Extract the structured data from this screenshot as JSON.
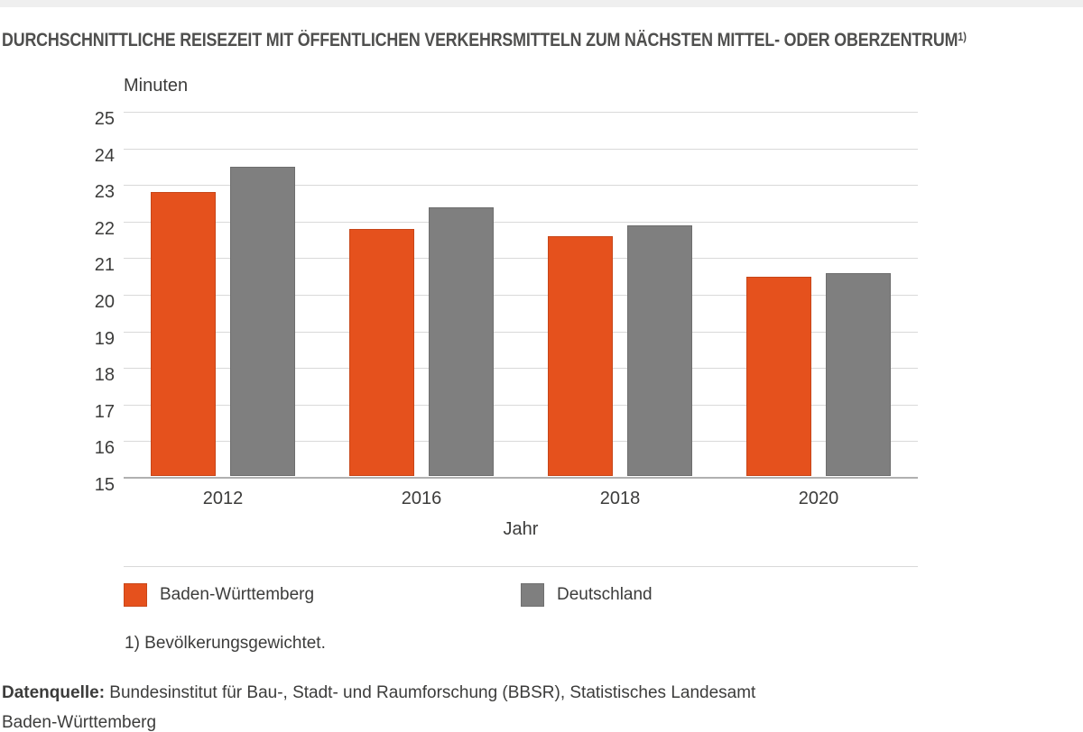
{
  "page": {
    "title": "DURCHSCHNITTLICHE REISEZEIT MIT ÖFFENTLICHEN VERKEHRSMITTELN ZUM NÄCHSTEN MITTEL- ODER OBERZENTRUM",
    "title_footnote_marker": "1)",
    "footnote": "1) Bevölkerungsgewichtet.",
    "source_label": "Datenquelle:",
    "source_line1": " Bundesinstitut für Bau-, Stadt- und Raumforschung (BBSR), Statistisches Landesamt",
    "source_line2": "Baden-Württemberg"
  },
  "chart_data": {
    "type": "bar",
    "title": "Durchschnittliche Reisezeit mit öffentlichen Verkehrsmitteln zum nächsten Mittel- oder Oberzentrum",
    "unit_label": "Minuten",
    "xlabel": "Jahr",
    "ylabel": "Minuten",
    "categories": [
      "2012",
      "2016",
      "2018",
      "2020"
    ],
    "series": [
      {
        "name": "Baden-Württemberg",
        "color": "#e5511d",
        "values": [
          22.8,
          21.8,
          21.6,
          20.5
        ]
      },
      {
        "name": "Deutschland",
        "color": "#7f7f7f",
        "values": [
          23.5,
          22.4,
          21.9,
          20.6
        ]
      }
    ],
    "ylim": [
      15,
      25
    ],
    "yticks": [
      15,
      16,
      17,
      18,
      19,
      20,
      21,
      22,
      23,
      24,
      25
    ],
    "grid": true,
    "legend_position": "bottom"
  },
  "colors": {
    "accent_orange": "#e5511d",
    "series_gray": "#7f7f7f",
    "gridline": "#d9d9d9",
    "axis_line": "#b0b0b0",
    "top_strip": "#efefef",
    "text": "#3c3c3b"
  }
}
